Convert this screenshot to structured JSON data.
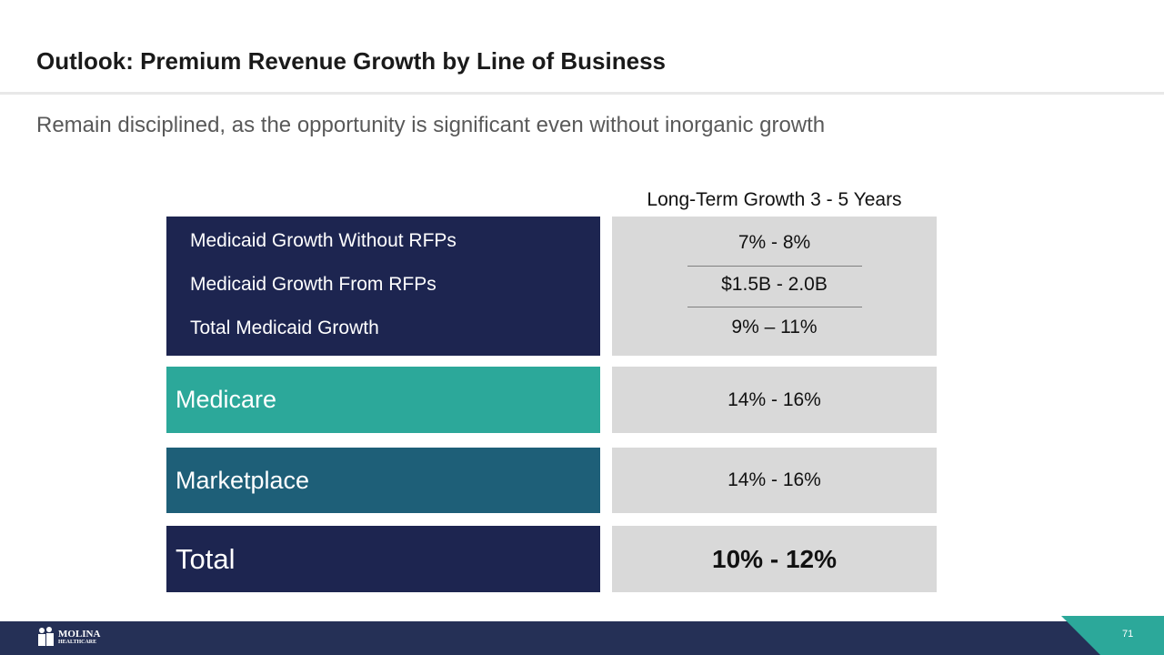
{
  "header": {
    "title": "Outlook: Premium Revenue Growth by Line of Business"
  },
  "subtitle": "Remain disciplined, as the opportunity is significant even without inorganic growth",
  "table": {
    "column_header": "Long-Term Growth 3 - 5 Years",
    "medicaid_rows": [
      {
        "label": "Medicaid Growth Without RFPs",
        "value": "7% - 8%"
      },
      {
        "label": "Medicaid Growth From RFPs",
        "value": "$1.5B - 2.0B"
      },
      {
        "label": "Total Medicaid Growth",
        "value": "9% – 11%"
      }
    ],
    "rows": [
      {
        "label": "Medicare",
        "value": "14% - 16%"
      },
      {
        "label": "Marketplace",
        "value": "14% - 16%"
      },
      {
        "label": "Total",
        "value": "10% - 12%"
      }
    ]
  },
  "footer": {
    "logo": "MOLINA",
    "logo_sub": "HEALTHCARE",
    "page_number": "71"
  }
}
